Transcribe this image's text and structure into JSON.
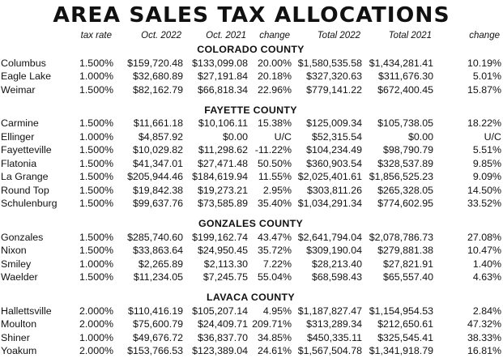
{
  "title": "AREA SALES TAX ALLOCATIONS",
  "headers": [
    "",
    "tax rate",
    "Oct. 2022",
    "Oct. 2021",
    "change",
    "Total 2022",
    "Total 2021",
    "change"
  ],
  "counties": [
    {
      "name": "COLORADO COUNTY",
      "rows": [
        [
          "Columbus",
          "1.500%",
          "$159,720.48",
          "$133,099.08",
          "20.00%",
          "$1,580,535.58",
          "$1,434,281.41",
          "10.19%"
        ],
        [
          "Eagle Lake",
          "1.000%",
          "$32,680.89",
          "$27,191.84",
          "20.18%",
          "$327,320.63",
          "$311,676.30",
          "5.01%"
        ],
        [
          "Weimar",
          "1.500%",
          "$82,162.79",
          "$66,818.34",
          "22.96%",
          "$779,141.22",
          "$672,400.45",
          "15.87%"
        ]
      ]
    },
    {
      "name": "FAYETTE COUNTY",
      "rows": [
        [
          "Carmine",
          "1.500%",
          "$11,661.18",
          "$10,106.11",
          "15.38%",
          "$125,009.34",
          "$105,738.05",
          "18.22%"
        ],
        [
          "Ellinger",
          "1.000%",
          "$4,857.92",
          "$0.00",
          "U/C",
          "$52,315.54",
          "$0.00",
          "U/C"
        ],
        [
          "Fayetteville",
          "1.500%",
          "$10,029.82",
          "$11,298.62",
          "-11.22%",
          "$104,234.49",
          "$98,790.79",
          "5.51%"
        ],
        [
          "Flatonia",
          "1.500%",
          "$41,347.01",
          "$27,471.48",
          "50.50%",
          "$360,903.54",
          "$328,537.89",
          "9.85%"
        ],
        [
          "La Grange",
          "1.500%",
          "$205,944.46",
          "$184,619.94",
          "11.55%",
          "$2,025,401.61",
          "$1,856,525.23",
          "9.09%"
        ],
        [
          "Round Top",
          "1.500%",
          "$19,842.38",
          "$19,273.21",
          "2.95%",
          "$303,811.26",
          "$265,328.05",
          "14.50%"
        ],
        [
          "Schulenburg",
          "1.500%",
          "$99,637.76",
          "$73,585.89",
          "35.40%",
          "$1,034,291.34",
          "$774,602.95",
          "33.52%"
        ]
      ]
    },
    {
      "name": "GONZALES COUNTY",
      "rows": [
        [
          "Gonzales",
          "1.500%",
          "$285,740.60",
          "$199,162.74",
          "43.47%",
          "$2,641,794.04",
          "$2,078,786.73",
          "27.08%"
        ],
        [
          "Nixon",
          "1.500%",
          "$33,863.64",
          "$24,950.45",
          "35.72%",
          "$309,190.04",
          "$279,881.38",
          "10.47%"
        ],
        [
          "Smiley",
          "1.000%",
          "$2,265.89",
          "$2,113.30",
          "7.22%",
          "$28,213.40",
          "$27,821.91",
          "1.40%"
        ],
        [
          "Waelder",
          "1.500%",
          "$11,234.05",
          "$7,245.75",
          "55.04%",
          "$68,598.43",
          "$65,557.40",
          "4.63%"
        ]
      ]
    },
    {
      "name": "LAVACA COUNTY",
      "rows": [
        [
          "Hallettsville",
          "2.000%",
          "$110,416.19",
          "$105,207.14",
          "4.95%",
          "$1,187,827.47",
          "$1,154,954.53",
          "2.84%"
        ],
        [
          "Moulton",
          "2.000%",
          "$75,600.79",
          "$24,409.71",
          "209.71%",
          "$313,289.34",
          "$212,650.61",
          "47.32%"
        ],
        [
          "Shiner",
          "1.000%",
          "$49,676.72",
          "$36,837.70",
          "34.85%",
          "$450,335.11",
          "$325,545.41",
          "38.33%"
        ],
        [
          "Yoakum",
          "2.000%",
          "$153,766.53",
          "$123,389.04",
          "24.61%",
          "$1,567,504.78",
          "$1,341,918.79",
          "16.81%"
        ]
      ]
    }
  ]
}
